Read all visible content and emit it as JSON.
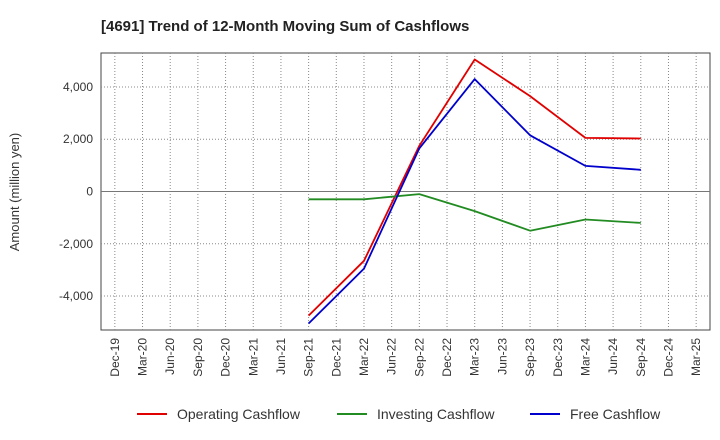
{
  "chart_data": {
    "type": "line",
    "title": "[4691]  Trend of 12-Month Moving Sum of Cashflows",
    "ylabel": "Amount (million yen)",
    "xlabel": "",
    "categories": [
      "Dec-19",
      "Mar-20",
      "Jun-20",
      "Sep-20",
      "Dec-20",
      "Mar-21",
      "Jun-21",
      "Sep-21",
      "Dec-21",
      "Mar-22",
      "Jun-22",
      "Sep-22",
      "Dec-22",
      "Mar-23",
      "Jun-23",
      "Sep-23",
      "Dec-23",
      "Mar-24",
      "Jun-24",
      "Sep-24",
      "Dec-24",
      "Mar-25"
    ],
    "ylim": [
      -5300,
      5300
    ],
    "yticks": [
      -4000,
      -2000,
      0,
      2000,
      4000
    ],
    "ytick_labels": [
      "-4,000",
      "-2,000",
      "0",
      "2,000",
      "4,000"
    ],
    "grid": true,
    "legend_position": "bottom",
    "series": [
      {
        "name": "Operating Cashflow",
        "color": "#e00000",
        "values": [
          null,
          null,
          null,
          null,
          null,
          null,
          null,
          -4750,
          null,
          -2650,
          null,
          1750,
          null,
          5050,
          null,
          3650,
          null,
          2050,
          null,
          2030,
          null,
          null
        ]
      },
      {
        "name": "Investing Cashflow",
        "color": "#228b22",
        "values": [
          null,
          null,
          null,
          null,
          null,
          null,
          null,
          -300,
          null,
          -300,
          null,
          -100,
          null,
          -750,
          null,
          -1500,
          null,
          -1070,
          null,
          -1200,
          null,
          null
        ]
      },
      {
        "name": "Free Cashflow",
        "color": "#0000cc",
        "values": [
          null,
          null,
          null,
          null,
          null,
          null,
          null,
          -5050,
          null,
          -2950,
          null,
          1650,
          null,
          4300,
          null,
          2150,
          null,
          980,
          null,
          830,
          null,
          null
        ]
      }
    ]
  }
}
